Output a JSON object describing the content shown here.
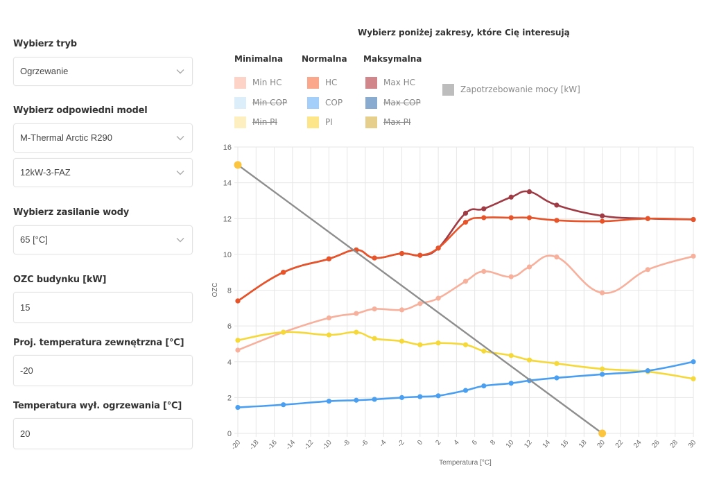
{
  "sidebar": {
    "mode_label": "Wybierz tryb",
    "mode_value": "Ogrzewanie",
    "model_label": "Wybierz odpowiedni model",
    "model_value": "M-Thermal Arctic R290",
    "variant_value": "12kW-3-FAZ",
    "water_label": "Wybierz zasilanie wody",
    "water_value": "65 [°C]",
    "ozc_label": "OZC budynku [kW]",
    "ozc_value": "15",
    "proj_temp_label": "Proj. temperatura zewnętrzna [°C]",
    "proj_temp_value": "-20",
    "off_temp_label": "Temperatura wył. ogrzewania [°C]",
    "off_temp_value": "20"
  },
  "legend": {
    "groups": [
      {
        "title": "Minimalna",
        "items": [
          {
            "label": "Min HC",
            "color": "#fdd3c7",
            "hidden": false
          },
          {
            "label": "Min COP",
            "color": "#dbeef9",
            "hidden": true
          },
          {
            "label": "Min PI",
            "color": "#fdefbf",
            "hidden": true
          }
        ]
      },
      {
        "title": "Normalna",
        "items": [
          {
            "label": "HC",
            "color": "#fba78c",
            "hidden": false
          },
          {
            "label": "COP",
            "color": "#a3cffa",
            "hidden": false
          },
          {
            "label": "PI",
            "color": "#fde68a",
            "hidden": false
          }
        ]
      },
      {
        "title": "Maksymalna",
        "items": [
          {
            "label": "Max HC",
            "color": "#d0868b",
            "hidden": false
          },
          {
            "label": "Max COP",
            "color": "#8aabd0",
            "hidden": true
          },
          {
            "label": "Max PI",
            "color": "#e6cf8c",
            "hidden": true
          }
        ]
      }
    ],
    "demand": {
      "label": "Zapotrzebowanie mocy [kW]",
      "color": "#bdbdbd",
      "hidden": false
    }
  },
  "chart_data": {
    "type": "line",
    "title": "Wybierz poniżej zakresy, które Cię interesują",
    "xlabel": "Temperatura [°C]",
    "ylabel": "OZC",
    "xlim": [
      -20,
      30
    ],
    "ylim": [
      0,
      16
    ],
    "x_ticks": [
      -20,
      -18,
      -16,
      -14,
      -12,
      -10,
      -8,
      -6,
      -4,
      -2,
      0,
      2,
      4,
      6,
      8,
      10,
      12,
      14,
      16,
      18,
      20,
      22,
      24,
      26,
      28,
      30
    ],
    "y_ticks": [
      0,
      2,
      4,
      6,
      8,
      10,
      12,
      14,
      16
    ],
    "grid": true,
    "x": [
      -20,
      -15,
      -10,
      -7,
      -5,
      -2,
      0,
      2,
      5,
      7,
      10,
      12,
      15,
      20,
      25,
      30
    ],
    "series": [
      {
        "name": "Min HC",
        "color": "#f7b09c",
        "values": [
          4.65,
          5.65,
          6.45,
          6.7,
          6.95,
          6.9,
          7.25,
          7.55,
          8.5,
          9.05,
          8.75,
          9.3,
          9.85,
          7.85,
          9.15,
          9.9
        ]
      },
      {
        "name": "PI",
        "color": "#f5d83a",
        "values": [
          5.2,
          5.65,
          5.5,
          5.65,
          5.3,
          5.15,
          4.95,
          5.05,
          4.95,
          4.6,
          4.35,
          4.1,
          3.9,
          3.6,
          3.45,
          3.05
        ]
      },
      {
        "name": "COP",
        "color": "#4a9ff0",
        "values": [
          1.45,
          1.6,
          1.8,
          1.85,
          1.9,
          2.0,
          2.05,
          2.1,
          2.4,
          2.65,
          2.8,
          2.95,
          3.1,
          3.3,
          3.5,
          4.0
        ]
      },
      {
        "name": "Max HC",
        "color": "#9e3b44",
        "values": [
          7.4,
          9.0,
          9.75,
          10.25,
          9.8,
          10.05,
          9.95,
          10.35,
          12.3,
          12.55,
          13.2,
          13.5,
          12.75,
          12.15,
          12.0,
          11.95
        ]
      },
      {
        "name": "HC",
        "color": "#e8542a",
        "values": [
          7.4,
          9.0,
          9.75,
          10.25,
          9.8,
          10.05,
          9.95,
          10.35,
          11.8,
          12.05,
          12.05,
          12.05,
          11.9,
          11.85,
          12.0,
          11.95
        ]
      }
    ],
    "demand_line": {
      "name": "Zapotrzebowanie mocy [kW]",
      "color": "#8e8e8e",
      "point_color": "#fbc53f",
      "x": [
        -20,
        20
      ],
      "values": [
        15,
        0
      ]
    }
  }
}
